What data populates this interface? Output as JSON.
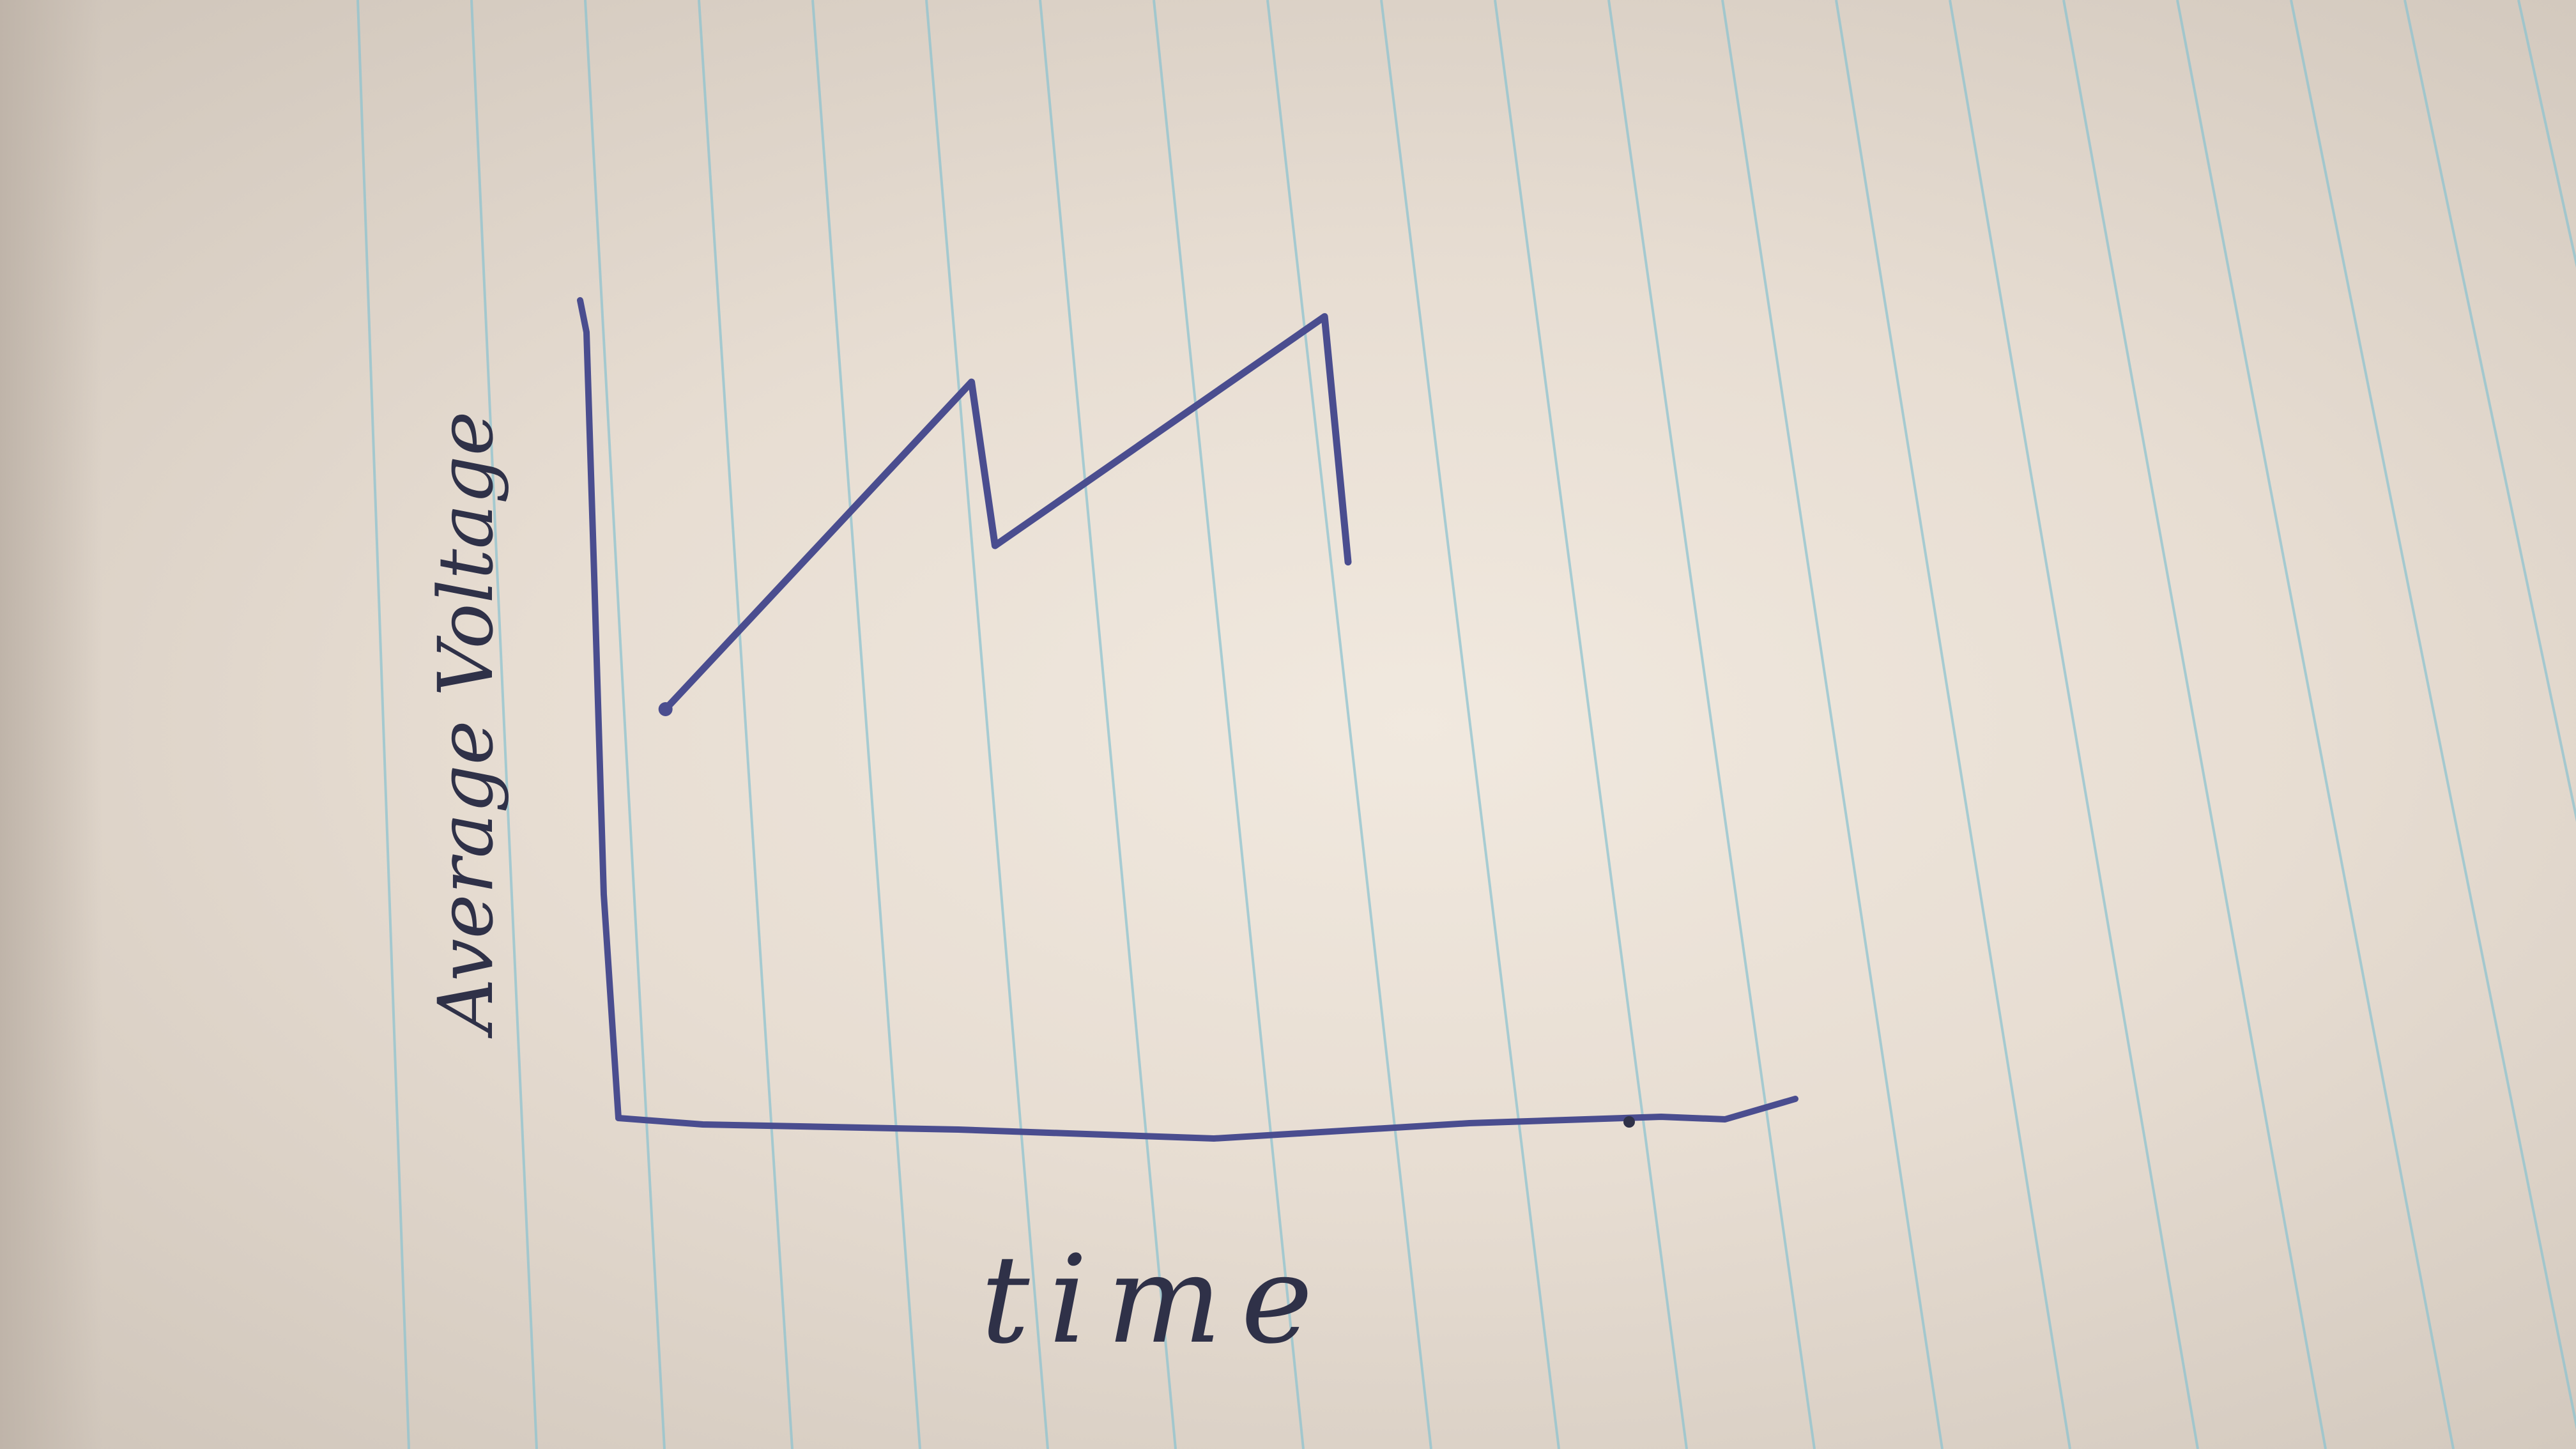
{
  "chart_data": {
    "type": "line",
    "title": "",
    "xlabel": "time",
    "ylabel": "Average Voltage",
    "xlim": [
      0,
      10
    ],
    "ylim": [
      0,
      10
    ],
    "grid": false,
    "series": [
      {
        "x": [
          0.4,
          3.0,
          3.2,
          6.0,
          6.2
        ],
        "values": [
          5.0,
          9.0,
          7.0,
          9.8,
          6.8
        ]
      }
    ]
  },
  "colors": {
    "ink": "#4a4d8f",
    "rule_line": "#8fc3cf"
  }
}
